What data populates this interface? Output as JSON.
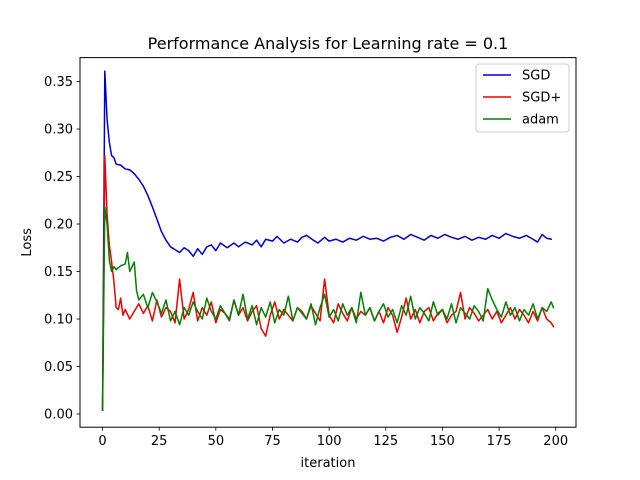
{
  "chart_data": {
    "type": "line",
    "title": "Performance Analysis for Learning rate = 0.1",
    "xlabel": "iteration",
    "ylabel": "Loss",
    "xlim": [
      -9.95,
      208.95
    ],
    "ylim": [
      -0.0139,
      0.3752
    ],
    "xticks": [
      0,
      25,
      50,
      75,
      100,
      125,
      150,
      175,
      200
    ],
    "yticks": [
      0.0,
      0.05,
      0.1,
      0.15,
      0.2,
      0.25,
      0.3,
      0.35
    ],
    "ytick_labels": [
      "0.00",
      "0.05",
      "0.10",
      "0.15",
      "0.20",
      "0.25",
      "0.30",
      "0.35"
    ],
    "grid": false,
    "legend_position": "top-right",
    "series": [
      {
        "name": "SGD",
        "color": "#0000cc",
        "points": [
          [
            0,
            0.004
          ],
          [
            1,
            0.361
          ],
          [
            2,
            0.31
          ],
          [
            3,
            0.286
          ],
          [
            4,
            0.272
          ],
          [
            5,
            0.27
          ],
          [
            6,
            0.263
          ],
          [
            8,
            0.262
          ],
          [
            10,
            0.258
          ],
          [
            12,
            0.257
          ],
          [
            14,
            0.253
          ],
          [
            16,
            0.247
          ],
          [
            18,
            0.24
          ],
          [
            20,
            0.23
          ],
          [
            22,
            0.218
          ],
          [
            24,
            0.205
          ],
          [
            26,
            0.192
          ],
          [
            28,
            0.183
          ],
          [
            30,
            0.176
          ],
          [
            32,
            0.173
          ],
          [
            34,
            0.17
          ],
          [
            36,
            0.175
          ],
          [
            38,
            0.172
          ],
          [
            40,
            0.166
          ],
          [
            42,
            0.174
          ],
          [
            44,
            0.168
          ],
          [
            46,
            0.176
          ],
          [
            48,
            0.178
          ],
          [
            50,
            0.172
          ],
          [
            52,
            0.18
          ],
          [
            55,
            0.175
          ],
          [
            58,
            0.18
          ],
          [
            60,
            0.176
          ],
          [
            63,
            0.181
          ],
          [
            66,
            0.178
          ],
          [
            68,
            0.183
          ],
          [
            70,
            0.176
          ],
          [
            72,
            0.184
          ],
          [
            75,
            0.182
          ],
          [
            77,
            0.187
          ],
          [
            80,
            0.18
          ],
          [
            83,
            0.184
          ],
          [
            86,
            0.181
          ],
          [
            88,
            0.186
          ],
          [
            90,
            0.188
          ],
          [
            93,
            0.183
          ],
          [
            95,
            0.18
          ],
          [
            98,
            0.186
          ],
          [
            100,
            0.182
          ],
          [
            103,
            0.184
          ],
          [
            106,
            0.181
          ],
          [
            109,
            0.185
          ],
          [
            112,
            0.183
          ],
          [
            115,
            0.187
          ],
          [
            118,
            0.184
          ],
          [
            121,
            0.185
          ],
          [
            124,
            0.182
          ],
          [
            127,
            0.186
          ],
          [
            130,
            0.188
          ],
          [
            133,
            0.184
          ],
          [
            136,
            0.189
          ],
          [
            139,
            0.186
          ],
          [
            142,
            0.183
          ],
          [
            145,
            0.188
          ],
          [
            148,
            0.185
          ],
          [
            151,
            0.189
          ],
          [
            154,
            0.186
          ],
          [
            157,
            0.184
          ],
          [
            160,
            0.187
          ],
          [
            163,
            0.183
          ],
          [
            166,
            0.186
          ],
          [
            169,
            0.184
          ],
          [
            172,
            0.188
          ],
          [
            175,
            0.185
          ],
          [
            178,
            0.19
          ],
          [
            181,
            0.187
          ],
          [
            184,
            0.185
          ],
          [
            187,
            0.188
          ],
          [
            190,
            0.184
          ],
          [
            192,
            0.181
          ],
          [
            194,
            0.189
          ],
          [
            196,
            0.185
          ],
          [
            198,
            0.184
          ]
        ]
      },
      {
        "name": "SGD+",
        "color": "#ee0000",
        "points": [
          [
            0,
            0.004
          ],
          [
            1,
            0.272
          ],
          [
            2,
            0.21
          ],
          [
            3,
            0.178
          ],
          [
            4,
            0.16
          ],
          [
            5,
            0.14
          ],
          [
            6,
            0.112
          ],
          [
            7,
            0.11
          ],
          [
            8,
            0.122
          ],
          [
            9,
            0.104
          ],
          [
            10,
            0.11
          ],
          [
            12,
            0.1
          ],
          [
            14,
            0.108
          ],
          [
            16,
            0.116
          ],
          [
            18,
            0.106
          ],
          [
            20,
            0.114
          ],
          [
            22,
            0.098
          ],
          [
            24,
            0.12
          ],
          [
            26,
            0.102
          ],
          [
            28,
            0.112
          ],
          [
            30,
            0.108
          ],
          [
            32,
            0.096
          ],
          [
            34,
            0.142
          ],
          [
            36,
            0.1
          ],
          [
            38,
            0.11
          ],
          [
            40,
            0.128
          ],
          [
            42,
            0.098
          ],
          [
            44,
            0.112
          ],
          [
            46,
            0.104
          ],
          [
            48,
            0.118
          ],
          [
            50,
            0.096
          ],
          [
            52,
            0.11
          ],
          [
            54,
            0.106
          ],
          [
            56,
            0.1
          ],
          [
            58,
            0.12
          ],
          [
            60,
            0.104
          ],
          [
            62,
            0.112
          ],
          [
            64,
            0.098
          ],
          [
            66,
            0.108
          ],
          [
            68,
            0.114
          ],
          [
            70,
            0.09
          ],
          [
            72,
            0.082
          ],
          [
            74,
            0.104
          ],
          [
            76,
            0.118
          ],
          [
            78,
            0.1
          ],
          [
            80,
            0.11
          ],
          [
            82,
            0.104
          ],
          [
            84,
            0.098
          ],
          [
            86,
            0.112
          ],
          [
            88,
            0.108
          ],
          [
            90,
            0.1
          ],
          [
            92,
            0.114
          ],
          [
            94,
            0.106
          ],
          [
            96,
            0.098
          ],
          [
            98,
            0.142
          ],
          [
            100,
            0.104
          ],
          [
            102,
            0.096
          ],
          [
            104,
            0.116
          ],
          [
            106,
            0.106
          ],
          [
            108,
            0.098
          ],
          [
            110,
            0.112
          ],
          [
            112,
            0.1
          ],
          [
            114,
            0.108
          ],
          [
            116,
            0.104
          ],
          [
            118,
            0.112
          ],
          [
            120,
            0.098
          ],
          [
            122,
            0.108
          ],
          [
            124,
            0.096
          ],
          [
            126,
            0.112
          ],
          [
            128,
            0.104
          ],
          [
            130,
            0.086
          ],
          [
            132,
            0.102
          ],
          [
            134,
            0.122
          ],
          [
            136,
            0.1
          ],
          [
            138,
            0.11
          ],
          [
            140,
            0.096
          ],
          [
            142,
            0.108
          ],
          [
            144,
            0.112
          ],
          [
            146,
            0.098
          ],
          [
            148,
            0.106
          ],
          [
            150,
            0.11
          ],
          [
            152,
            0.096
          ],
          [
            154,
            0.104
          ],
          [
            156,
            0.108
          ],
          [
            158,
            0.128
          ],
          [
            160,
            0.1
          ],
          [
            162,
            0.112
          ],
          [
            164,
            0.106
          ],
          [
            166,
            0.098
          ],
          [
            168,
            0.104
          ],
          [
            170,
            0.11
          ],
          [
            172,
            0.1
          ],
          [
            174,
            0.108
          ],
          [
            176,
            0.096
          ],
          [
            178,
            0.104
          ],
          [
            180,
            0.112
          ],
          [
            182,
            0.1
          ],
          [
            184,
            0.11
          ],
          [
            186,
            0.104
          ],
          [
            188,
            0.096
          ],
          [
            190,
            0.108
          ],
          [
            192,
            0.098
          ],
          [
            194,
            0.112
          ],
          [
            196,
            0.1
          ],
          [
            198,
            0.096
          ],
          [
            199,
            0.092
          ]
        ]
      },
      {
        "name": "adam",
        "color": "#008000",
        "points": [
          [
            0,
            0.004
          ],
          [
            1,
            0.218
          ],
          [
            2,
            0.2
          ],
          [
            3,
            0.162
          ],
          [
            4,
            0.15
          ],
          [
            5,
            0.155
          ],
          [
            6,
            0.152
          ],
          [
            8,
            0.156
          ],
          [
            10,
            0.158
          ],
          [
            11,
            0.17
          ],
          [
            12,
            0.15
          ],
          [
            14,
            0.16
          ],
          [
            15,
            0.13
          ],
          [
            16,
            0.12
          ],
          [
            18,
            0.126
          ],
          [
            20,
            0.112
          ],
          [
            22,
            0.128
          ],
          [
            24,
            0.118
          ],
          [
            26,
            0.106
          ],
          [
            28,
            0.12
          ],
          [
            30,
            0.098
          ],
          [
            32,
            0.108
          ],
          [
            34,
            0.094
          ],
          [
            36,
            0.112
          ],
          [
            38,
            0.104
          ],
          [
            40,
            0.118
          ],
          [
            42,
            0.108
          ],
          [
            44,
            0.1
          ],
          [
            46,
            0.122
          ],
          [
            48,
            0.108
          ],
          [
            50,
            0.1
          ],
          [
            52,
            0.114
          ],
          [
            54,
            0.106
          ],
          [
            56,
            0.098
          ],
          [
            58,
            0.12
          ],
          [
            60,
            0.104
          ],
          [
            62,
            0.126
          ],
          [
            64,
            0.1
          ],
          [
            66,
            0.114
          ],
          [
            68,
            0.094
          ],
          [
            70,
            0.112
          ],
          [
            72,
            0.102
          ],
          [
            74,
            0.118
          ],
          [
            76,
            0.096
          ],
          [
            78,
            0.11
          ],
          [
            80,
            0.104
          ],
          [
            82,
            0.124
          ],
          [
            84,
            0.098
          ],
          [
            86,
            0.112
          ],
          [
            88,
            0.106
          ],
          [
            90,
            0.1
          ],
          [
            92,
            0.116
          ],
          [
            94,
            0.094
          ],
          [
            96,
            0.112
          ],
          [
            98,
            0.126
          ],
          [
            100,
            0.102
          ],
          [
            102,
            0.11
          ],
          [
            104,
            0.098
          ],
          [
            106,
            0.116
          ],
          [
            108,
            0.104
          ],
          [
            110,
            0.112
          ],
          [
            112,
            0.096
          ],
          [
            114,
            0.128
          ],
          [
            116,
            0.104
          ],
          [
            118,
            0.112
          ],
          [
            120,
            0.098
          ],
          [
            122,
            0.108
          ],
          [
            124,
            0.116
          ],
          [
            126,
            0.102
          ],
          [
            128,
            0.11
          ],
          [
            130,
            0.096
          ],
          [
            132,
            0.114
          ],
          [
            134,
            0.104
          ],
          [
            136,
            0.124
          ],
          [
            138,
            0.1
          ],
          [
            140,
            0.112
          ],
          [
            142,
            0.106
          ],
          [
            144,
            0.098
          ],
          [
            146,
            0.118
          ],
          [
            148,
            0.104
          ],
          [
            150,
            0.11
          ],
          [
            152,
            0.1
          ],
          [
            154,
            0.116
          ],
          [
            156,
            0.096
          ],
          [
            158,
            0.112
          ],
          [
            160,
            0.106
          ],
          [
            162,
            0.1
          ],
          [
            164,
            0.114
          ],
          [
            166,
            0.108
          ],
          [
            168,
            0.098
          ],
          [
            170,
            0.132
          ],
          [
            172,
            0.12
          ],
          [
            174,
            0.11
          ],
          [
            176,
            0.102
          ],
          [
            178,
            0.118
          ],
          [
            180,
            0.104
          ],
          [
            182,
            0.112
          ],
          [
            184,
            0.098
          ],
          [
            186,
            0.11
          ],
          [
            188,
            0.104
          ],
          [
            190,
            0.116
          ],
          [
            192,
            0.1
          ],
          [
            194,
            0.112
          ],
          [
            196,
            0.108
          ],
          [
            198,
            0.118
          ],
          [
            199,
            0.112
          ]
        ]
      }
    ]
  }
}
